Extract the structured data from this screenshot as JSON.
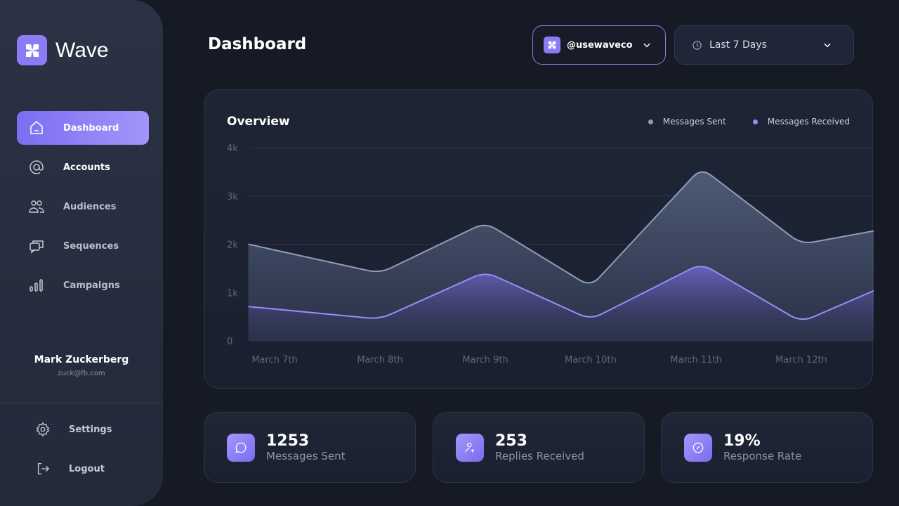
{
  "brand": {
    "name": "Wave"
  },
  "sidebar": {
    "items": [
      {
        "label": "Dashboard",
        "icon": "home-icon",
        "active": true
      },
      {
        "label": "Accounts",
        "icon": "at-icon"
      },
      {
        "label": "Audiences",
        "icon": "users-icon"
      },
      {
        "label": "Sequences",
        "icon": "chat-icon"
      },
      {
        "label": "Campaigns",
        "icon": "bar-chart-icon"
      }
    ],
    "user": {
      "name": "Mark Zuckerberg",
      "email": "zuck@fb.com"
    },
    "settings": "Settings",
    "logout": "Logout"
  },
  "header": {
    "title": "Dashboard",
    "account": "@usewaveco",
    "range": "Last 7 Days"
  },
  "colors": {
    "accent": "#8b7cf6",
    "sent": "#8f9bb8",
    "received": "#9a8cf7"
  },
  "chart_data": {
    "type": "area",
    "title": "Overview",
    "legend": [
      "Messages Sent",
      "Messages Received"
    ],
    "categories": [
      "March 7th",
      "March 8th",
      "March 9th",
      "March 10th",
      "March 11th",
      "March 12th"
    ],
    "category_days": [
      7,
      8,
      9,
      10,
      11,
      12
    ],
    "yticks": [
      "0",
      "1k",
      "2k",
      "3k",
      "4k"
    ],
    "ylim": [
      0,
      4000
    ],
    "x": [
      6.75,
      8,
      9,
      10,
      11.05,
      12,
      12.7
    ],
    "series": [
      {
        "name": "Messages Sent",
        "values": [
          2000,
          1400,
          2450,
          1120,
          3580,
          2000,
          2280
        ]
      },
      {
        "name": "Messages Received",
        "values": [
          710,
          450,
          1430,
          440,
          1600,
          390,
          1050
        ]
      }
    ]
  },
  "stats": [
    {
      "value": "1253",
      "label": "Messages Sent",
      "icon": "message-icon"
    },
    {
      "value": "253",
      "label": "Replies Received",
      "icon": "user-plus-icon"
    },
    {
      "value": "19%",
      "label": "Response Rate",
      "icon": "percent-icon"
    }
  ]
}
